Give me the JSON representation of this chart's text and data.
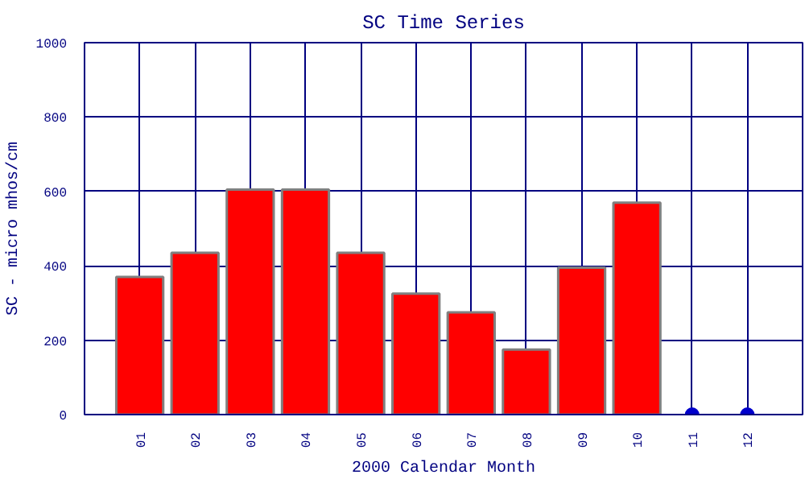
{
  "chart_data": {
    "type": "bar",
    "title": "SC Time Series",
    "xlabel": "2000 Calendar Month",
    "ylabel": "SC - micro mhos/cm",
    "categories": [
      "01",
      "02",
      "03",
      "04",
      "05",
      "06",
      "07",
      "08",
      "09",
      "10",
      "11",
      "12"
    ],
    "series": [
      {
        "color": "#ff0000",
        "values": [
          370,
          435,
          605,
          605,
          435,
          325,
          275,
          175,
          395,
          570,
          null,
          null
        ]
      },
      {
        "type": "scatter",
        "color": "#0000cc",
        "x": [
          "11",
          "12"
        ],
        "values": [
          0,
          0
        ],
        "marker": "circle"
      }
    ],
    "ylim": [
      0,
      1000
    ],
    "yticks": [
      0,
      200,
      400,
      600,
      800,
      1000
    ],
    "grid": true
  }
}
